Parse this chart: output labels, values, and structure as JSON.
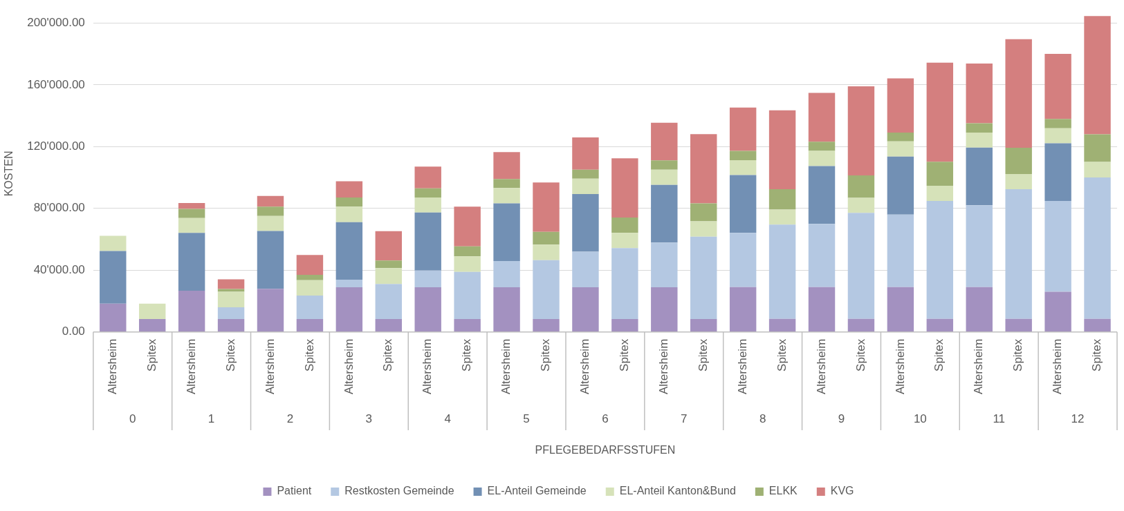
{
  "chart_data": {
    "type": "bar",
    "stacked": true,
    "xlabel": "PFLEGEBEDARFSSTUFEN",
    "ylabel": "KOSTEN",
    "categories": [
      "Altersheim",
      "Spitex",
      "Altersheim",
      "Spitex",
      "Altersheim",
      "Spitex",
      "Altersheim",
      "Spitex",
      "Altersheim",
      "Spitex",
      "Altersheim",
      "Spitex",
      "Altersheim",
      "Spitex",
      "Altersheim",
      "Spitex",
      "Altersheim",
      "Spitex",
      "Altersheim",
      "Spitex",
      "Altersheim",
      "Spitex",
      "Altersheim",
      "Spitex",
      "Altersheim",
      "Spitex"
    ],
    "annotations": [
      "0",
      "1",
      "2",
      "3",
      "4",
      "5",
      "6",
      "7",
      "8",
      "9",
      "10",
      "11",
      "12"
    ],
    "series": [
      {
        "name": "Patient",
        "color": "#a391c0",
        "values": [
          18300,
          8400,
          26700,
          8400,
          27900,
          8400,
          28900,
          8400,
          28900,
          8400,
          28900,
          8400,
          28900,
          8400,
          28900,
          8400,
          29000,
          8500,
          29000,
          8500,
          29000,
          8500,
          29000,
          8500,
          26000,
          8500
        ]
      },
      {
        "name": "Restkosten Gemeinde",
        "color": "#b4c8e2",
        "values": [
          null,
          null,
          null,
          7600,
          null,
          15200,
          4900,
          22700,
          10900,
          30500,
          17000,
          38100,
          23000,
          45900,
          29000,
          53300,
          35100,
          61000,
          41000,
          68600,
          47000,
          76300,
          53000,
          83900,
          58800,
          91500
        ]
      },
      {
        "name": "EL-Anteil Gemeinde",
        "color": "#7290b4",
        "values": [
          34100,
          null,
          37400,
          null,
          37500,
          null,
          37300,
          null,
          37500,
          null,
          37400,
          null,
          37400,
          null,
          37300,
          null,
          37500,
          null,
          37400,
          null,
          37500,
          null,
          37400,
          null,
          37300,
          null
        ]
      },
      {
        "name": "EL-Anteil Kanton&Bund",
        "color": "#d6e2b9",
        "values": [
          9800,
          9900,
          9700,
          10000,
          9700,
          9900,
          10000,
          10200,
          9800,
          10000,
          9900,
          10000,
          9900,
          9800,
          9900,
          9900,
          9600,
          9700,
          9800,
          9700,
          9900,
          9800,
          9700,
          9800,
          9800,
          10100
        ]
      },
      {
        "name": "ELKK",
        "color": "#9fb174",
        "values": [
          null,
          null,
          5900,
          1800,
          6000,
          3500,
          5900,
          4900,
          5900,
          6500,
          5800,
          8300,
          5900,
          10000,
          6000,
          11700,
          6000,
          13200,
          6000,
          14600,
          5700,
          15600,
          6000,
          17000,
          6000,
          17900
        ]
      },
      {
        "name": "KVG",
        "color": "#d47f7f",
        "values": [
          null,
          null,
          3800,
          6300,
          7000,
          12800,
          10600,
          19000,
          14100,
          25700,
          17500,
          32000,
          20900,
          38300,
          24400,
          44800,
          28100,
          51100,
          31600,
          57600,
          35100,
          64100,
          38700,
          70400,
          42100,
          76500
        ]
      }
    ],
    "ylim": [
      0,
      205000
    ],
    "yticks": [
      {
        "value": 0,
        "label": "0.00"
      },
      {
        "value": 40000,
        "label": "40'000.00"
      },
      {
        "value": 80000,
        "label": "80'000.00"
      },
      {
        "value": 120000,
        "label": "120'000.00"
      },
      {
        "value": 160000,
        "label": "160'000.00"
      },
      {
        "value": 200000,
        "label": "200'000.00"
      }
    ],
    "grid": "y",
    "legend": "bottom"
  }
}
